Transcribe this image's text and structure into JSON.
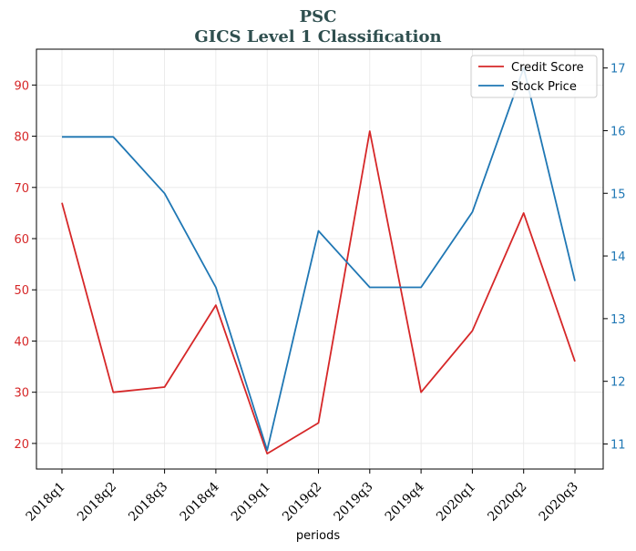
{
  "chart_data": {
    "type": "line",
    "title": "PSC",
    "subtitle": "GICS Level 1 Classification",
    "xlabel": "periods",
    "ylabel": "",
    "y2label": "",
    "categories": [
      "2018q1",
      "2018q2",
      "2018q3",
      "2018q4",
      "2019q1",
      "2019q2",
      "2019q3",
      "2019q4",
      "2020q1",
      "2020q2",
      "2020q3"
    ],
    "series": [
      {
        "name": "Credit Score",
        "axis": "left",
        "color": "#d62728",
        "values": [
          67,
          30,
          31,
          47,
          18,
          24,
          81,
          30,
          42,
          65,
          36
        ]
      },
      {
        "name": "Stock Price",
        "axis": "right",
        "color": "#1f77b4",
        "values": [
          15.9,
          15.9,
          15.0,
          13.5,
          10.9,
          14.4,
          13.5,
          13.5,
          14.7,
          17.0,
          13.6
        ]
      }
    ],
    "ylim": [
      15,
      97
    ],
    "y2lim": [
      10.6,
      17.3
    ],
    "yticks": [
      20,
      30,
      40,
      50,
      60,
      70,
      80,
      90
    ],
    "y2ticks": [
      11,
      12,
      13,
      14,
      15,
      16,
      17
    ],
    "left_axis_color": "#d62728",
    "right_axis_color": "#1f77b4",
    "grid": true,
    "legend_position": "top-right"
  }
}
